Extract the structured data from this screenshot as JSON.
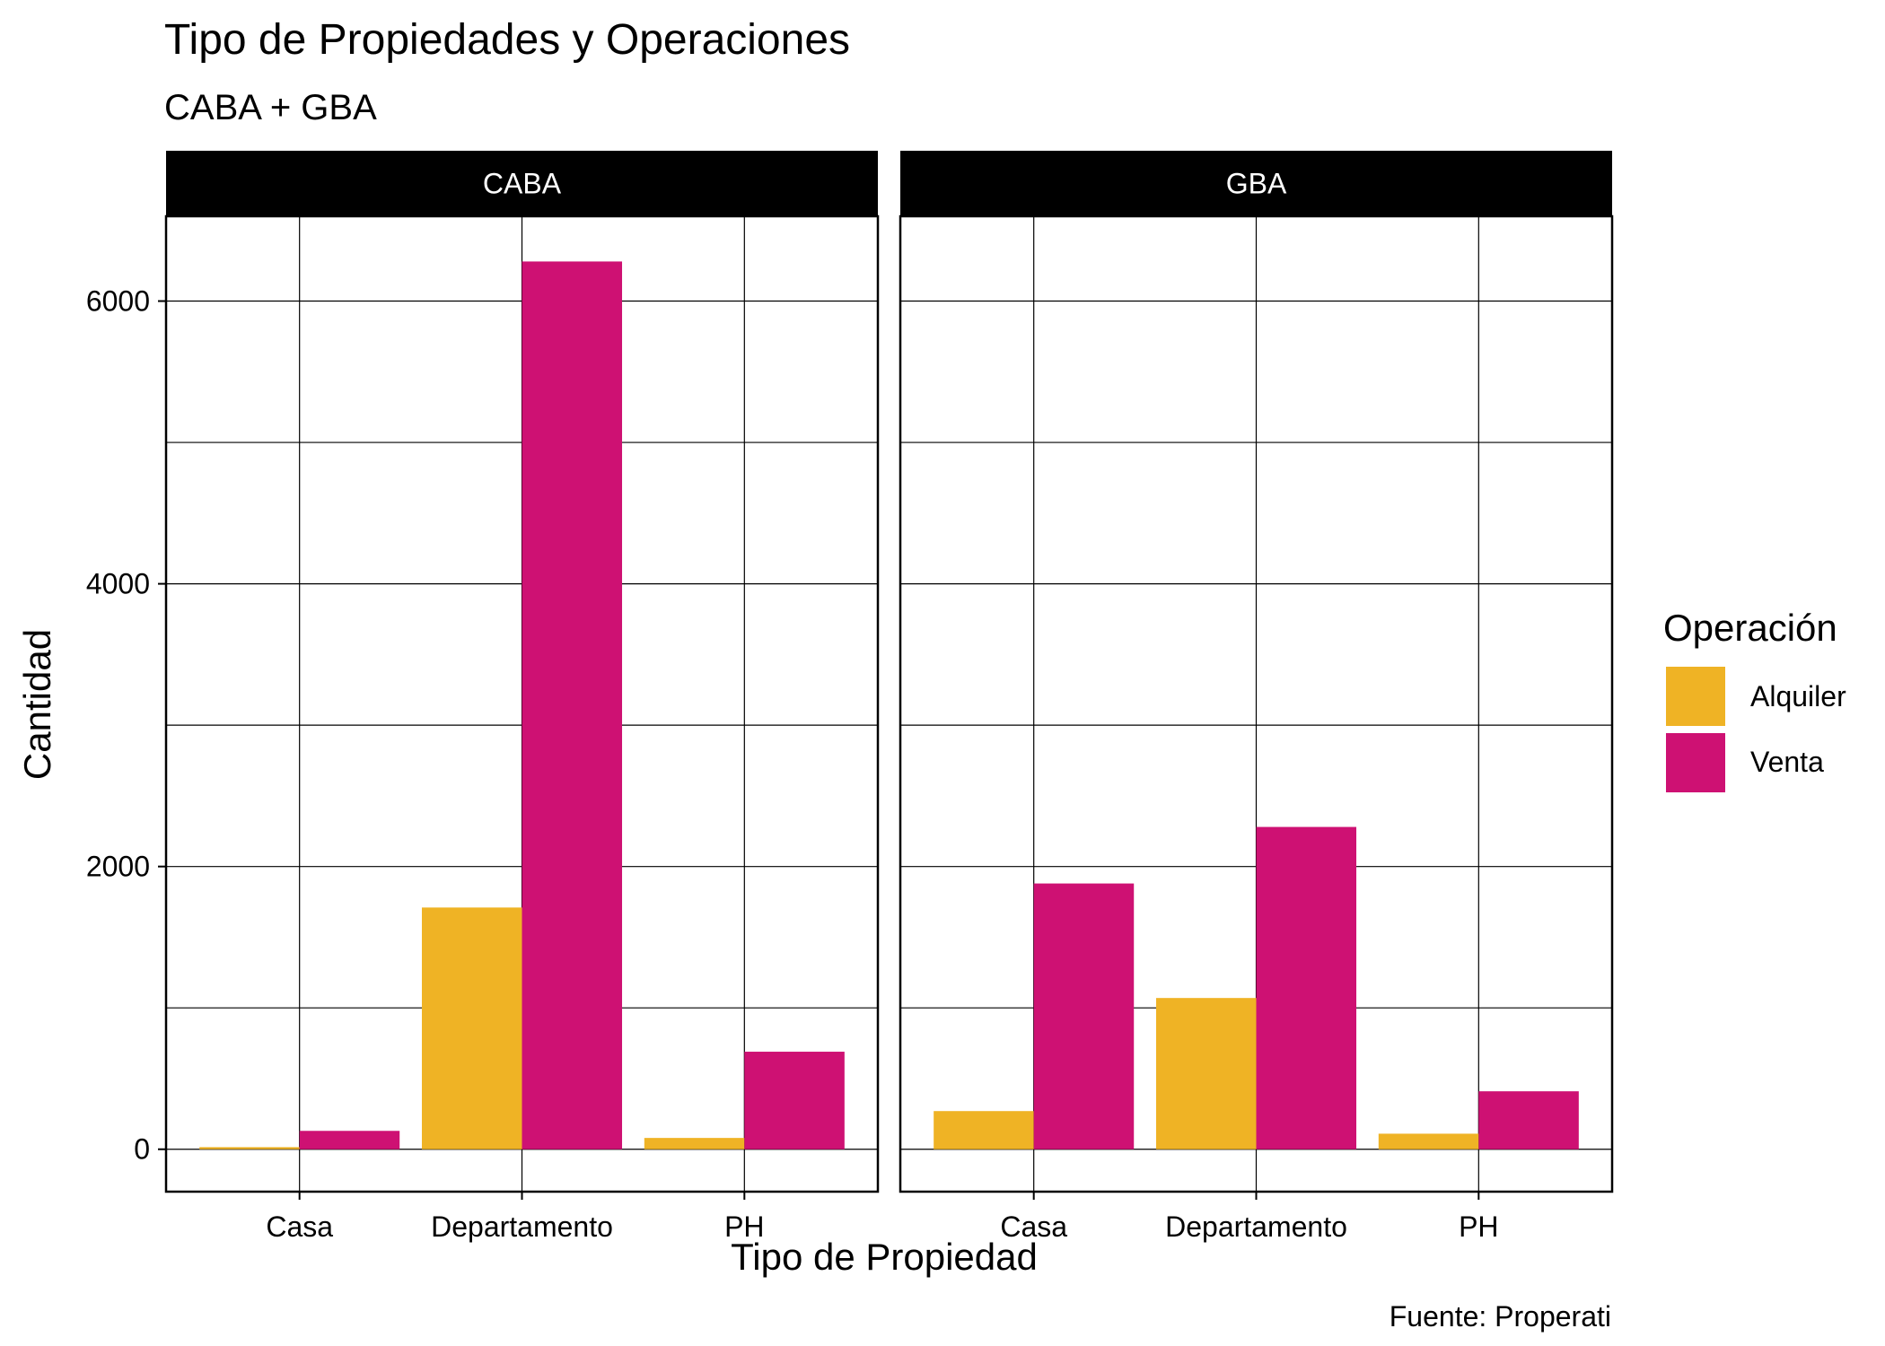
{
  "chart_data": {
    "type": "bar",
    "title": "Tipo de Propiedades y Operaciones",
    "subtitle": "CABA + GBA",
    "xlabel": "Tipo de Propiedad",
    "ylabel": "Cantidad",
    "caption": "Fuente: Properati",
    "ylim": [
      -300,
      6600
    ],
    "yticks": [
      0,
      2000,
      4000,
      6000
    ],
    "tick_labels": [
      "0",
      "2000",
      "4000",
      "6000"
    ],
    "categories": [
      "Casa",
      "Departamento",
      "PH"
    ],
    "legend": {
      "title": "Operación",
      "position": "right",
      "entries": [
        "Alquiler",
        "Venta"
      ]
    },
    "colors": {
      "Alquiler": "#EFB325",
      "Venta": "#CE1173",
      "strip": "#000000"
    },
    "grid": true,
    "facets": [
      {
        "name": "CABA",
        "series": [
          {
            "name": "Alquiler",
            "values": [
              15,
              1710,
              80
            ]
          },
          {
            "name": "Venta",
            "values": [
              130,
              6280,
              690
            ]
          }
        ]
      },
      {
        "name": "GBA",
        "series": [
          {
            "name": "Alquiler",
            "values": [
              270,
              1070,
              110
            ]
          },
          {
            "name": "Venta",
            "values": [
              1880,
              2280,
              410
            ]
          }
        ]
      }
    ]
  }
}
